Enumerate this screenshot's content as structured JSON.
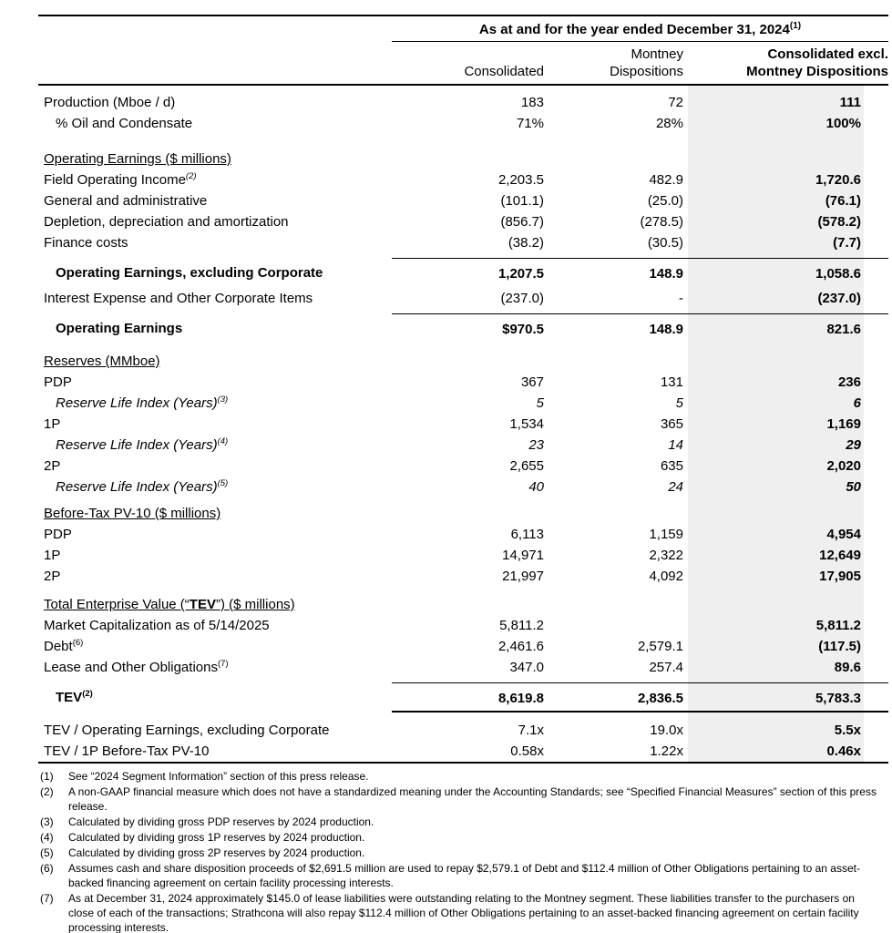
{
  "table": {
    "span_header": {
      "text": "As at and for the year ended December 31, 2024",
      "sup": "(1)"
    },
    "columns": [
      {
        "lines": [
          "",
          "Consolidated"
        ],
        "bold": false
      },
      {
        "lines": [
          "Montney",
          "Dispositions"
        ],
        "bold": false
      },
      {
        "lines": [
          "Consolidated excl.",
          "Montney Dispositions"
        ],
        "bold": true
      }
    ],
    "rows": [
      {
        "type": "data",
        "label": "Production (Mboe / d)",
        "v": [
          "183",
          "72",
          "111"
        ]
      },
      {
        "type": "data",
        "label": "% Oil and Condensate",
        "indent": true,
        "v": [
          "71%",
          "28%",
          "100%"
        ]
      },
      {
        "type": "spacer",
        "h": 16
      },
      {
        "type": "section",
        "label": "Operating Earnings ($ millions)"
      },
      {
        "type": "data",
        "label": "Field Operating Income",
        "sup": "(2)",
        "sup_italic": true,
        "v": [
          "2,203.5",
          "482.9",
          "1,720.6"
        ]
      },
      {
        "type": "data",
        "label": "General and administrative",
        "v": [
          "(101.1)",
          "(25.0)",
          "(76.1)"
        ]
      },
      {
        "type": "data",
        "label": "Depletion, depreciation and amortization",
        "v": [
          "(856.7)",
          "(278.5)",
          "(578.2)"
        ]
      },
      {
        "type": "data",
        "label": "Finance costs",
        "v": [
          "(38.2)",
          "(30.5)",
          "(7.7)"
        ]
      },
      {
        "type": "data",
        "label": "Operating Earnings, excluding Corporate",
        "indent": true,
        "bold": true,
        "topline": true,
        "v": [
          "1,207.5",
          "148.9",
          "1,058.6"
        ]
      },
      {
        "type": "spacer",
        "h": 4
      },
      {
        "type": "data",
        "label": "Interest Expense and Other Corporate Items",
        "v": [
          "(237.0)",
          "-",
          "(237.0)"
        ]
      },
      {
        "type": "data",
        "label": "Operating Earnings",
        "indent": true,
        "bold": true,
        "topline": true,
        "v": [
          "$970.5",
          "148.9",
          "821.6"
        ]
      },
      {
        "type": "spacer",
        "h": 12
      },
      {
        "type": "section",
        "label": "Reserves (MMboe)"
      },
      {
        "type": "data",
        "label": "PDP",
        "v": [
          "367",
          "131",
          "236"
        ]
      },
      {
        "type": "data",
        "label": "Reserve Life Index (Years)",
        "sup": "(3)",
        "sup_italic": true,
        "italic": true,
        "indent": true,
        "v": [
          "5",
          "5",
          "6"
        ]
      },
      {
        "type": "data",
        "label": "1P",
        "v": [
          "1,534",
          "365",
          "1,169"
        ]
      },
      {
        "type": "data",
        "label": "Reserve Life Index (Years)",
        "sup": "(4)",
        "sup_italic": true,
        "italic": true,
        "indent": true,
        "v": [
          "23",
          "14",
          "29"
        ]
      },
      {
        "type": "data",
        "label": "2P",
        "v": [
          "2,655",
          "635",
          "2,020"
        ]
      },
      {
        "type": "data",
        "label": "Reserve Life Index (Years)",
        "sup": "(5)",
        "sup_italic": true,
        "italic": true,
        "indent": true,
        "v": [
          "40",
          "24",
          "50"
        ]
      },
      {
        "type": "spacer",
        "h": 6
      },
      {
        "type": "section",
        "label": "Before-Tax PV-10 ($ millions)"
      },
      {
        "type": "data",
        "label": "PDP",
        "v": [
          "6,113",
          "1,159",
          "4,954"
        ]
      },
      {
        "type": "data",
        "label": "1P",
        "v": [
          "14,971",
          "2,322",
          "12,649"
        ]
      },
      {
        "type": "data",
        "label": "2P",
        "v": [
          "21,997",
          "4,092",
          "17,905"
        ]
      },
      {
        "type": "spacer",
        "h": 8
      },
      {
        "type": "section",
        "segments": [
          {
            "t": "Total Enterprise Value (“"
          },
          {
            "t": "TEV",
            "b": true
          },
          {
            "t": "”) ($ millions)"
          }
        ]
      },
      {
        "type": "data",
        "label": "Market Capitalization as of 5/14/2025",
        "v": [
          "5,811.2",
          "",
          "5,811.2"
        ]
      },
      {
        "type": "data",
        "label": "Debt",
        "sup": "(6)",
        "v": [
          "2,461.6",
          "2,579.1",
          "(117.5)"
        ]
      },
      {
        "type": "data",
        "label": "Lease and Other Obligations",
        "sup": "(7)",
        "v": [
          "347.0",
          "257.4",
          "89.6"
        ]
      },
      {
        "type": "data",
        "label": "TEV",
        "sup": "(2)",
        "bold": true,
        "indent": true,
        "topline": true,
        "bottomline": true,
        "v": [
          "8,619.8",
          "2,836.5",
          "5,783.3"
        ]
      },
      {
        "type": "spacer",
        "h": 8
      },
      {
        "type": "data",
        "label": "TEV / Operating Earnings, excluding Corporate",
        "v": [
          "7.1x",
          "19.0x",
          "5.5x"
        ]
      },
      {
        "type": "data",
        "label": "TEV / 1P Before-Tax PV-10",
        "v": [
          "0.58x",
          "1.22x",
          "0.46x"
        ]
      }
    ]
  },
  "footnotes": [
    {
      "num": "(1)",
      "text": "See “2024 Segment Information” section of this press release."
    },
    {
      "num": "(2)",
      "text": "A non-GAAP financial measure which does not have a standardized meaning under the Accounting Standards; see “Specified Financial Measures” section of this press release."
    },
    {
      "num": "(3)",
      "text": "Calculated by dividing gross PDP reserves by 2024 production."
    },
    {
      "num": "(4)",
      "text": "Calculated by dividing gross 1P reserves by 2024 production."
    },
    {
      "num": "(5)",
      "text": "Calculated by dividing gross 2P reserves by 2024 production."
    },
    {
      "num": "(6)",
      "text": "Assumes cash and share disposition proceeds of $2,691.5 million are used to repay $2,579.1 of Debt and $112.4 million of Other Obligations pertaining to an asset-backed financing agreement on certain facility processing interests."
    },
    {
      "num": "(7)",
      "text": "As at December 31, 2024 approximately $145.0 of lease liabilities were outstanding relating to the Montney segment. These liabilities transfer to the purchasers on close of each of the transactions; Strathcona will also repay $112.4 million of Other Obligations pertaining to an asset-backed financing agreement on certain facility processing interests."
    }
  ],
  "colors": {
    "band": "#efefef",
    "rule": "#000000",
    "text": "#000000"
  }
}
